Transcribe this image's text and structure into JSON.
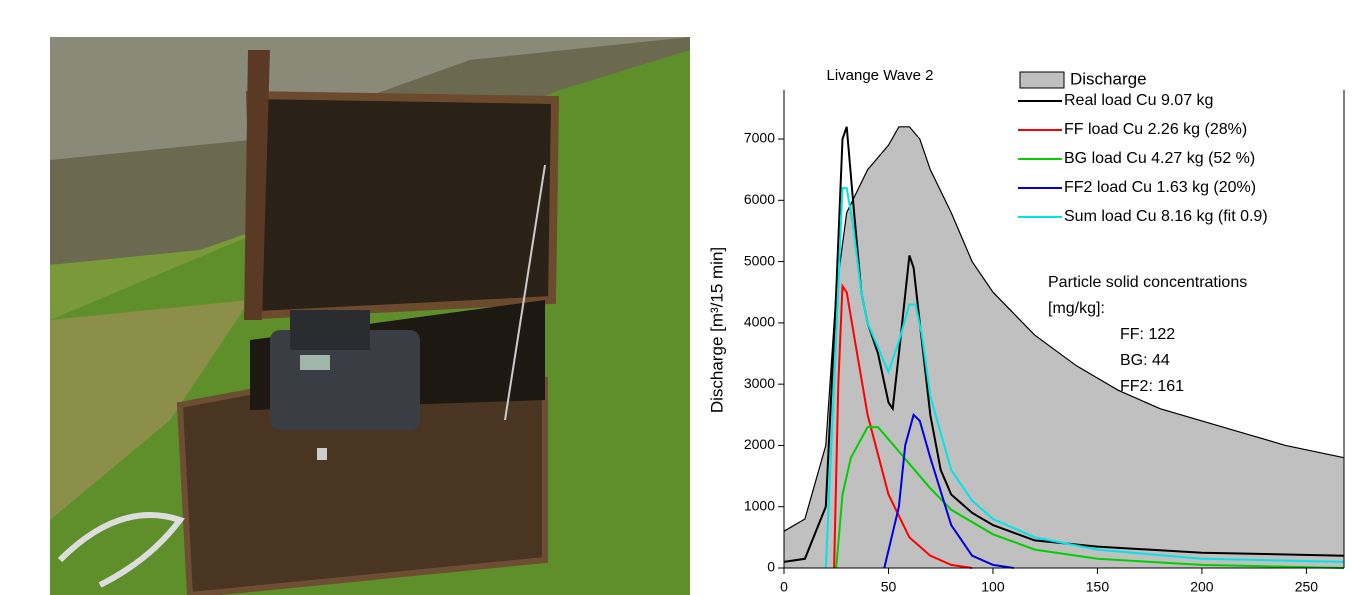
{
  "chart_data": {
    "type": "line",
    "title": "Livange Wave 2",
    "y_label": "Discharge [m³/15 min]",
    "xlim": [
      0,
      268
    ],
    "ylim": [
      0,
      7800
    ],
    "xticks": [
      0,
      50,
      100,
      150,
      200,
      250
    ],
    "yticks": [
      0,
      1000,
      2000,
      3000,
      4000,
      5000,
      6000,
      7000
    ],
    "annotations": [
      "Particle solid concentrations",
      "[mg/kg]:",
      "FF: 122",
      "BG: 44",
      "FF2: 161"
    ],
    "series": [
      {
        "name": "Discharge",
        "color": "#c0c0c0",
        "kind": "area",
        "x": [
          0,
          10,
          20,
          25,
          30,
          40,
          50,
          55,
          60,
          65,
          70,
          80,
          90,
          100,
          120,
          140,
          160,
          180,
          200,
          220,
          240,
          268
        ],
        "values": [
          600,
          800,
          2000,
          4500,
          5800,
          6500,
          6900,
          7200,
          7200,
          7000,
          6500,
          5800,
          5000,
          4500,
          3800,
          3300,
          2900,
          2600,
          2400,
          2200,
          2000,
          1800
        ]
      },
      {
        "name": "Real load Cu 9.07 kg",
        "color": "#000000",
        "x": [
          0,
          10,
          20,
          25,
          28,
          30,
          33,
          37,
          40,
          45,
          50,
          52,
          55,
          60,
          62,
          65,
          70,
          75,
          80,
          90,
          100,
          120,
          150,
          200,
          268
        ],
        "values": [
          100,
          150,
          1000,
          4500,
          7000,
          7200,
          6000,
          4500,
          4000,
          3500,
          2700,
          2600,
          3500,
          5100,
          4900,
          4000,
          2500,
          1600,
          1200,
          900,
          700,
          450,
          350,
          250,
          200
        ]
      },
      {
        "name": "FF load Cu 2.26 kg (28%)",
        "color": "#ff0000",
        "x": [
          24,
          26,
          28,
          30,
          35,
          40,
          50,
          60,
          70,
          80,
          90
        ],
        "values": [
          0,
          3000,
          4600,
          4500,
          3500,
          2500,
          1200,
          500,
          200,
          50,
          0
        ]
      },
      {
        "name": "BG load Cu 4.27 kg (52 %)",
        "color": "#00d000",
        "x": [
          25,
          28,
          32,
          40,
          45,
          50,
          60,
          70,
          80,
          100,
          120,
          150,
          200,
          268
        ],
        "values": [
          0,
          1200,
          1800,
          2300,
          2300,
          2100,
          1700,
          1300,
          950,
          550,
          300,
          150,
          50,
          0
        ]
      },
      {
        "name": "FF2 load Cu 1.63 kg (20%)",
        "color": "#0000e0",
        "x": [
          48,
          55,
          58,
          62,
          65,
          70,
          80,
          90,
          100,
          110
        ],
        "values": [
          0,
          1000,
          2000,
          2500,
          2400,
          1800,
          700,
          200,
          50,
          0
        ]
      },
      {
        "name": "Sum load Cu 8.16 kg (fit 0.9)",
        "color": "#00e5e5",
        "x": [
          20,
          24,
          28,
          30,
          33,
          37,
          40,
          45,
          50,
          55,
          60,
          63,
          66,
          70,
          80,
          90,
          100,
          120,
          150,
          200,
          268
        ],
        "values": [
          0,
          3000,
          6200,
          6200,
          5600,
          4500,
          4000,
          3600,
          3200,
          3700,
          4300,
          4300,
          3800,
          2800,
          1600,
          1100,
          800,
          500,
          300,
          150,
          100
        ]
      }
    ]
  }
}
